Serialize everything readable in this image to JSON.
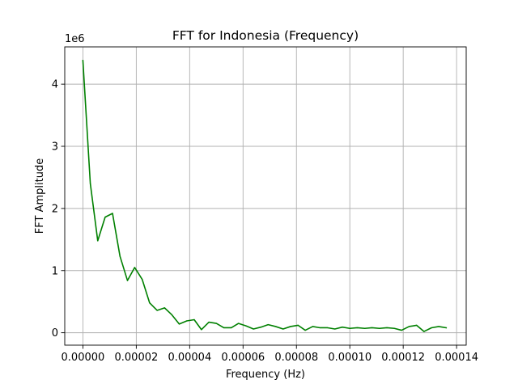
{
  "chart_data": {
    "type": "line",
    "title": "FFT for Indonesia (Frequency)",
    "xlabel": "Frequency (Hz)",
    "ylabel": "FFT Amplitude",
    "y_offset_label": "1e6",
    "xlim": [
      -6.8e-06,
      0.0001436
    ],
    "ylim": [
      -200000,
      4600000
    ],
    "x_ticks": [
      0,
      2e-05,
      4e-05,
      6e-05,
      8e-05,
      0.0001,
      0.00012,
      0.00014
    ],
    "x_tick_labels": [
      "0.00000",
      "0.00002",
      "0.00004",
      "0.00006",
      "0.00008",
      "0.00010",
      "0.00012",
      "0.00014"
    ],
    "y_ticks": [
      0,
      1000000,
      2000000,
      3000000,
      4000000
    ],
    "y_tick_labels": [
      "0",
      "1",
      "2",
      "3",
      "4"
    ],
    "grid": true,
    "series": [
      {
        "color": "#008000",
        "x": [
          0,
          2.78e-06,
          5.56e-06,
          8.33e-06,
          1.11e-05,
          1.39e-05,
          1.67e-05,
          1.94e-05,
          2.22e-05,
          2.5e-05,
          2.78e-05,
          3.06e-05,
          3.33e-05,
          3.61e-05,
          3.89e-05,
          4.17e-05,
          4.44e-05,
          4.72e-05,
          5e-05,
          5.28e-05,
          5.56e-05,
          5.83e-05,
          6.11e-05,
          6.39e-05,
          6.67e-05,
          6.94e-05,
          7.22e-05,
          7.5e-05,
          7.78e-05,
          8.06e-05,
          8.33e-05,
          8.61e-05,
          8.89e-05,
          9.17e-05,
          9.44e-05,
          9.72e-05,
          0.0001,
          0.0001028,
          0.0001056,
          0.0001083,
          0.0001111,
          0.0001139,
          0.0001167,
          0.0001194,
          0.0001222,
          0.000125,
          0.0001278,
          0.0001306,
          0.0001333,
          0.0001361
        ],
        "values": [
          4380000,
          2400000,
          1480000,
          1860000,
          1920000,
          1230000,
          840000,
          1050000,
          860000,
          480000,
          360000,
          400000,
          290000,
          140000,
          190000,
          210000,
          50000,
          170000,
          150000,
          80000,
          80000,
          150000,
          110000,
          60000,
          90000,
          130000,
          100000,
          60000,
          100000,
          120000,
          40000,
          100000,
          80000,
          80000,
          60000,
          90000,
          70000,
          80000,
          70000,
          80000,
          70000,
          80000,
          70000,
          40000,
          100000,
          120000,
          20000,
          80000,
          100000,
          80000
        ]
      }
    ]
  }
}
